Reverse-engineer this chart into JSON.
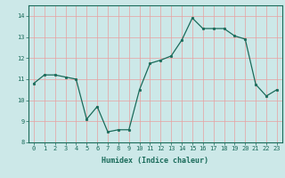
{
  "x": [
    0,
    1,
    2,
    3,
    4,
    5,
    6,
    7,
    8,
    9,
    10,
    11,
    12,
    13,
    14,
    15,
    16,
    17,
    18,
    19,
    20,
    21,
    22,
    23
  ],
  "y": [
    10.8,
    11.2,
    11.2,
    11.1,
    11.0,
    9.1,
    9.7,
    8.5,
    8.6,
    8.6,
    10.5,
    11.75,
    11.9,
    12.1,
    12.85,
    13.9,
    13.4,
    13.4,
    13.4,
    13.05,
    12.9,
    10.75,
    10.2,
    10.5
  ],
  "line_color": "#1a6b5a",
  "marker": "o",
  "marker_size": 1.8,
  "linewidth": 0.9,
  "xlabel": "Humidex (Indice chaleur)",
  "ylim": [
    8,
    14.5
  ],
  "xlim": [
    -0.5,
    23.5
  ],
  "yticks": [
    8,
    9,
    10,
    11,
    12,
    13,
    14
  ],
  "xticks": [
    0,
    1,
    2,
    3,
    4,
    5,
    6,
    7,
    8,
    9,
    10,
    11,
    12,
    13,
    14,
    15,
    16,
    17,
    18,
    19,
    20,
    21,
    22,
    23
  ],
  "bg_color": "#cce8e8",
  "grid_color": "#e8a0a0",
  "tick_color": "#1a6b5a",
  "label_color": "#1a6b5a",
  "tick_fontsize": 5.0,
  "xlabel_fontsize": 6.0
}
